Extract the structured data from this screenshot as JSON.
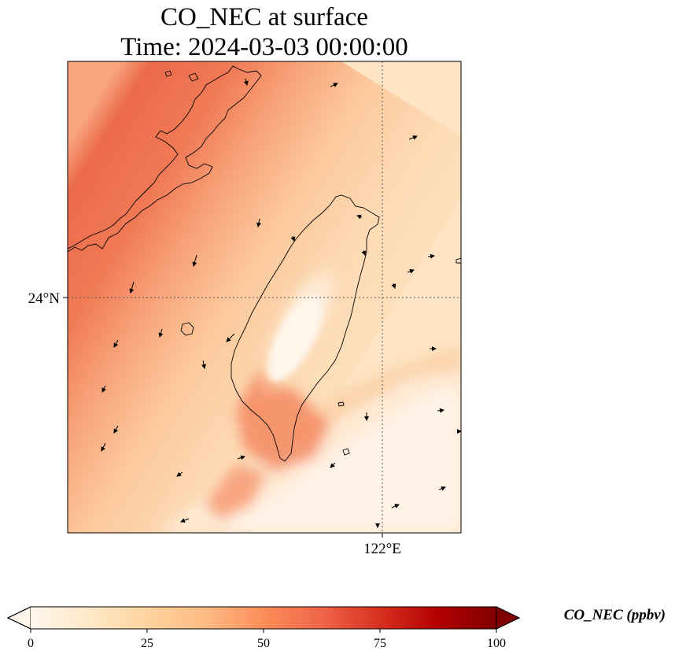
{
  "map": {
    "title_line1": "CO_NEC at surface",
    "title_line2": "Time: 2024-03-03 00:00:00",
    "lat_label": "24°N",
    "lon_label": "122°E",
    "field": "CO_NEC",
    "gridline_style": "dotted",
    "coastline_color": "#000000"
  },
  "colorbar": {
    "label": "CO_NEC (ppbv)",
    "ticks": [
      "0",
      "25",
      "50",
      "75",
      "100"
    ],
    "colormap": "OrRd",
    "extend": "both",
    "stops": [
      "#fff7ec",
      "#fdd49e",
      "#fc8d59",
      "#d7301f",
      "#7f0000"
    ]
  }
}
